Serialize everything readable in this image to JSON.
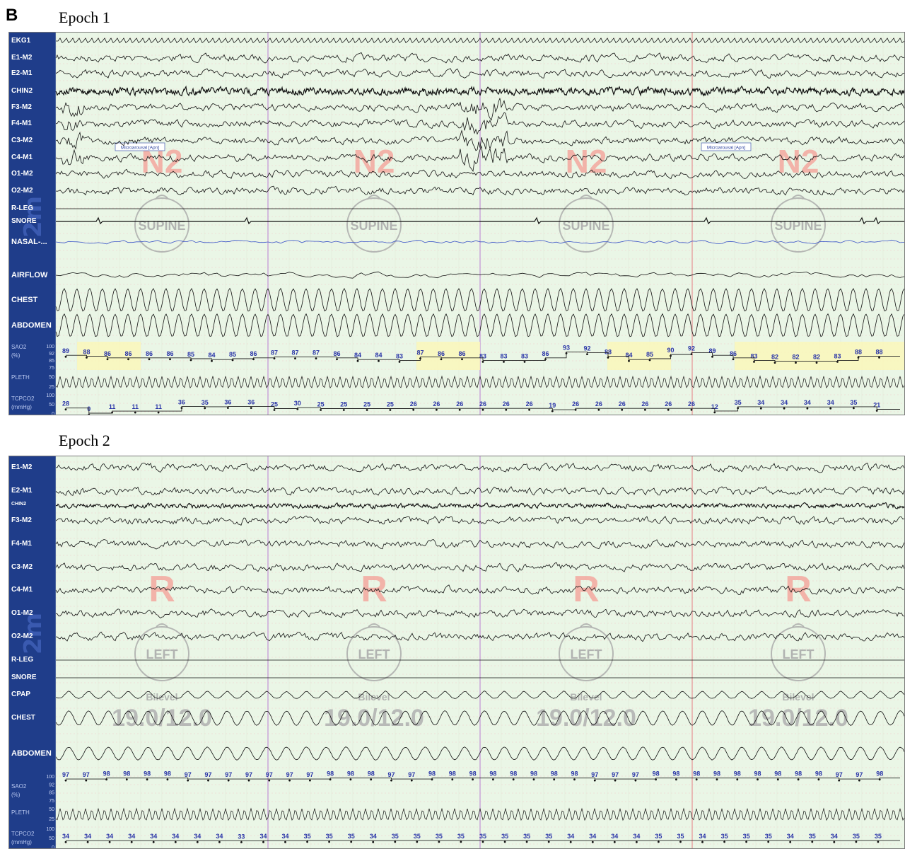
{
  "panel_letter": "B",
  "epochs": [
    {
      "title": "Epoch 1",
      "scale": "2m",
      "stage": "N2",
      "position": "SUPINE",
      "therapy": [],
      "events": [
        "Microarousal [Apn]",
        "Microarousal [Apn]"
      ],
      "channels": [
        "EKG1",
        "E1-M2",
        "E2-M1",
        "CHIN2",
        "F3-M2",
        "F4-M1",
        "C3-M2",
        "C4-M1",
        "O1-M2",
        "O2-M2",
        "R-LEG",
        "SNORE",
        "NASAL-...",
        "AIRFLOW",
        "CHEST",
        "ABDOMEN",
        "SAO2",
        "(%)",
        "PLETH",
        "TCPCO2",
        "(mmHg)"
      ],
      "sao2_ticks": [
        "100",
        "92",
        "85",
        "75"
      ],
      "pleth_ticks": [
        "50",
        "25"
      ],
      "tcpco2_ticks": [
        "100",
        "50",
        "0"
      ]
    },
    {
      "title": "Epoch 2",
      "scale": "2m",
      "stage": "R",
      "position": "LEFT",
      "therapy": [
        "Bilevel",
        "19.0/12.0"
      ],
      "events": [],
      "channels": [
        "E1-M2",
        "E2-M1",
        "CHIN2",
        "F3-M2",
        "F4-M1",
        "C3-M2",
        "C4-M1",
        "O1-M2",
        "O2-M2",
        "R-LEG",
        "SNORE",
        "CPAP",
        "CHEST",
        "ABDOMEN",
        "SAO2",
        "(%)",
        "PLETH",
        "TCPCO2",
        "(mmHg)"
      ],
      "sao2_ticks": [
        "100",
        "92",
        "85",
        "75"
      ],
      "pleth_ticks": [
        "50",
        "25"
      ],
      "tcpco2_ticks": [
        "100",
        "50",
        "0"
      ]
    }
  ],
  "chart_data": [
    {
      "type": "line",
      "title": "Epoch 1",
      "series": [
        {
          "name": "SAO2",
          "unit": "(%)",
          "values": [
            89,
            88,
            86,
            86,
            86,
            86,
            85,
            84,
            85,
            86,
            87,
            87,
            87,
            86,
            84,
            84,
            83,
            87,
            86,
            86,
            83,
            83,
            83,
            86,
            93,
            92,
            88,
            84,
            85,
            90,
            92,
            89,
            86,
            83,
            82,
            82,
            82,
            83,
            88,
            88
          ]
        },
        {
          "name": "TCPCO2",
          "unit": "(mmHg)",
          "values": [
            28,
            0,
            11,
            11,
            11,
            36,
            35,
            36,
            36,
            25,
            30,
            25,
            25,
            25,
            25,
            26,
            26,
            26,
            26,
            26,
            26,
            19,
            26,
            26,
            26,
            26,
            26,
            26,
            12,
            35,
            34,
            34,
            34,
            34,
            35,
            21
          ]
        }
      ]
    },
    {
      "type": "line",
      "title": "Epoch 2",
      "series": [
        {
          "name": "SAO2",
          "unit": "(%)",
          "values": [
            97,
            97,
            98,
            98,
            98,
            98,
            97,
            97,
            97,
            97,
            97,
            97,
            97,
            98,
            98,
            98,
            97,
            97,
            98,
            98,
            98,
            98,
            98,
            98,
            98,
            98,
            97,
            97,
            97,
            98,
            98,
            98,
            98,
            98,
            98,
            98,
            98,
            98,
            97,
            97,
            98
          ]
        },
        {
          "name": "TCPCO2",
          "unit": "(mmHg)",
          "values": [
            34,
            34,
            34,
            34,
            34,
            34,
            34,
            34,
            33,
            34,
            34,
            35,
            35,
            35,
            34,
            35,
            35,
            35,
            35,
            35,
            35,
            35,
            35,
            34,
            34,
            34,
            34,
            35,
            35,
            34,
            35,
            35,
            35,
            34,
            35,
            34,
            35,
            35
          ]
        }
      ]
    }
  ]
}
